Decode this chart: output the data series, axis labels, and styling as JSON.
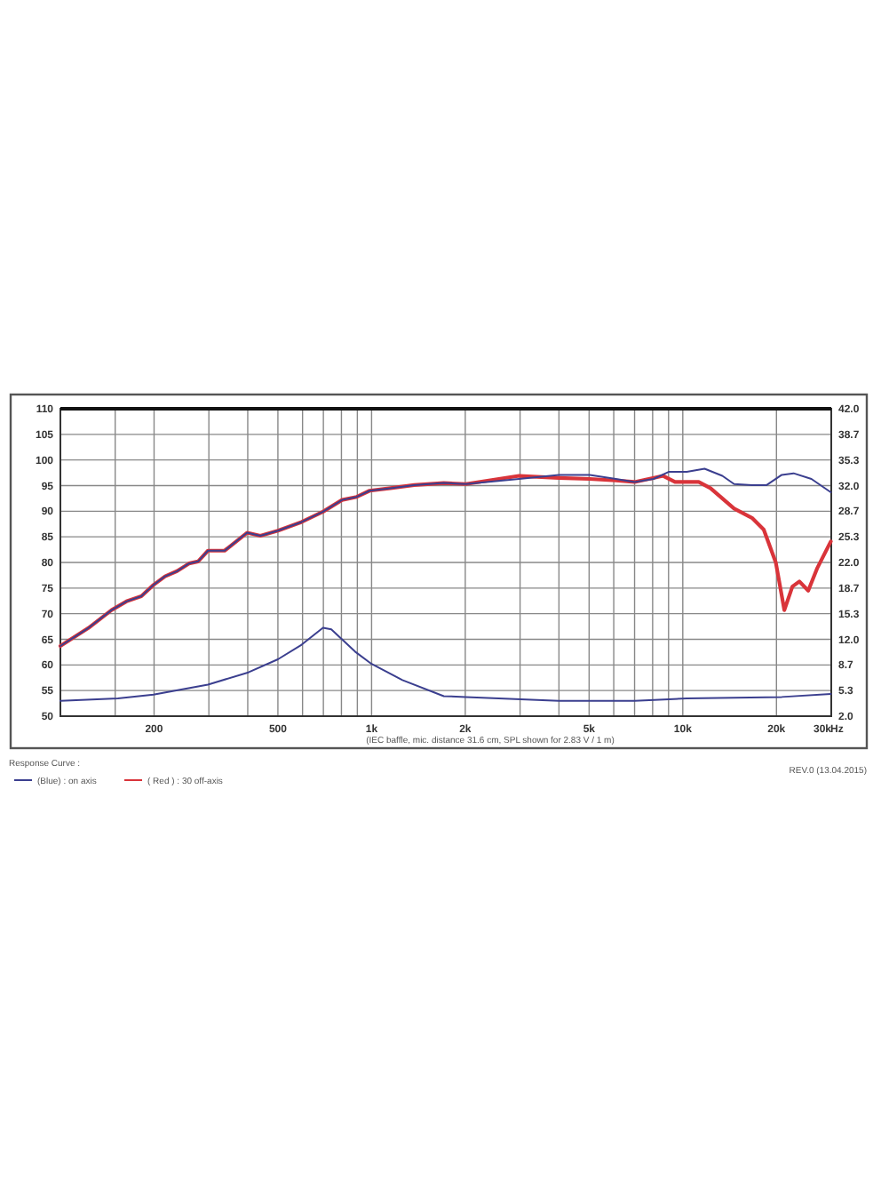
{
  "chart_data": {
    "type": "line",
    "log": "x",
    "grid": true,
    "legend": "bottom",
    "legend_title": "Response Curve :",
    "annotations": [
      "(IEC baffle, mic. distance 31.6 cm, SPL shown for 2.83 V / 1 m)",
      "REV.0 (13.04.2015)"
    ],
    "xlim": [
      100,
      30000
    ],
    "xticks": [
      {
        "value": 150,
        "label": null
      },
      {
        "value": 200,
        "label": "200"
      },
      {
        "value": 300,
        "label": null
      },
      {
        "value": 400,
        "label": null
      },
      {
        "value": 500,
        "label": "500"
      },
      {
        "value": 600,
        "label": null
      },
      {
        "value": 700,
        "label": null
      },
      {
        "value": 800,
        "label": null
      },
      {
        "value": 900,
        "label": null
      },
      {
        "value": 1000,
        "label": "1k"
      },
      {
        "value": 2000,
        "label": "2k"
      },
      {
        "value": 3000,
        "label": null
      },
      {
        "value": 4000,
        "label": null
      },
      {
        "value": 5000,
        "label": "5k"
      },
      {
        "value": 6000,
        "label": null
      },
      {
        "value": 7000,
        "label": null
      },
      {
        "value": 8000,
        "label": null
      },
      {
        "value": 9000,
        "label": null
      },
      {
        "value": 10000,
        "label": "10k"
      },
      {
        "value": 20000,
        "label": "20k"
      },
      {
        "value": 30000,
        "label": "30k"
      }
    ],
    "xlabel": "Hz",
    "ylim": [
      50,
      110
    ],
    "yticks": [
      50,
      55,
      60,
      65,
      70,
      75,
      80,
      85,
      90,
      95,
      100,
      105,
      110
    ],
    "y2lim": [
      2,
      42
    ],
    "y2ticks": [
      {
        "value": 2,
        "label": "2.0"
      },
      5.3,
      8.7,
      {
        "value": 12,
        "label": "12.0"
      },
      15.3,
      18.7,
      {
        "value": 22,
        "label": "22.0"
      },
      25.3,
      28.7,
      {
        "value": 32,
        "label": "32.0"
      },
      35.3,
      38.7,
      {
        "value": 42,
        "label": "42.0"
      }
    ],
    "series": [
      {
        "name": "(Blue) : on axis",
        "color": "#3b3f8f",
        "x": [
          100,
          123,
          146,
          163,
          182,
          199,
          217,
          237,
          259,
          277,
          298,
          337,
          398,
          439,
          500,
          596,
          698,
          804,
          896,
          986,
          1151,
          1371,
          1706,
          2008,
          2978,
          4000,
          5023,
          6095,
          7000,
          8054,
          9036,
          10300,
          11750,
          13400,
          14620,
          16680,
          18600,
          20800,
          22700,
          25900,
          29900
        ],
        "values": [
          63.7,
          67.2,
          70.7,
          72.4,
          73.4,
          75.6,
          77.3,
          78.3,
          79.8,
          80.2,
          82.3,
          82.3,
          85.8,
          85.2,
          86.2,
          87.9,
          89.9,
          92.2,
          92.8,
          94.0,
          94.5,
          95.1,
          95.5,
          95.3,
          96.3,
          97.1,
          97.1,
          96.3,
          95.7,
          96.3,
          97.7,
          97.7,
          98.3,
          96.9,
          95.3,
          95.1,
          95.1,
          97.1,
          97.4,
          96.3,
          93.7
        ]
      },
      {
        "name": "( Red ) : 30 off-axis",
        "color": "#d9343a",
        "x": [
          100,
          123,
          146,
          163,
          182,
          199,
          217,
          237,
          259,
          277,
          298,
          337,
          398,
          439,
          500,
          596,
          698,
          804,
          896,
          986,
          1151,
          1371,
          1706,
          2008,
          2978,
          4000,
          5023,
          6095,
          7000,
          8650,
          9440,
          11250,
          12270,
          14620,
          16680,
          18200,
          19900,
          21200,
          22500,
          23700,
          25300,
          27000,
          29900
        ],
        "values": [
          63.7,
          67.2,
          70.7,
          72.4,
          73.4,
          75.6,
          77.3,
          78.3,
          79.8,
          80.2,
          82.3,
          82.3,
          85.8,
          85.2,
          86.2,
          87.9,
          89.9,
          92.2,
          92.8,
          94.0,
          94.5,
          95.1,
          95.5,
          95.3,
          96.9,
          96.5,
          96.3,
          96.0,
          95.7,
          96.9,
          95.7,
          95.7,
          94.5,
          90.5,
          88.7,
          86.4,
          80.0,
          70.7,
          75.3,
          76.3,
          74.5,
          78.8,
          84.1
        ]
      },
      {
        "color": "#3b3f8f",
        "axis": "y2",
        "x": [
          100,
          153,
          199,
          298,
          402,
          500,
          596,
          698,
          742,
          885,
          1000,
          1256,
          1706,
          2008,
          4000,
          7000,
          10300,
          20800,
          29900
        ],
        "values": [
          4.0,
          4.3,
          4.8,
          6.1,
          7.7,
          9.4,
          11.3,
          13.5,
          13.3,
          10.4,
          8.8,
          6.7,
          4.6,
          4.5,
          4.0,
          4.0,
          4.3,
          4.5,
          4.9
        ]
      }
    ]
  }
}
